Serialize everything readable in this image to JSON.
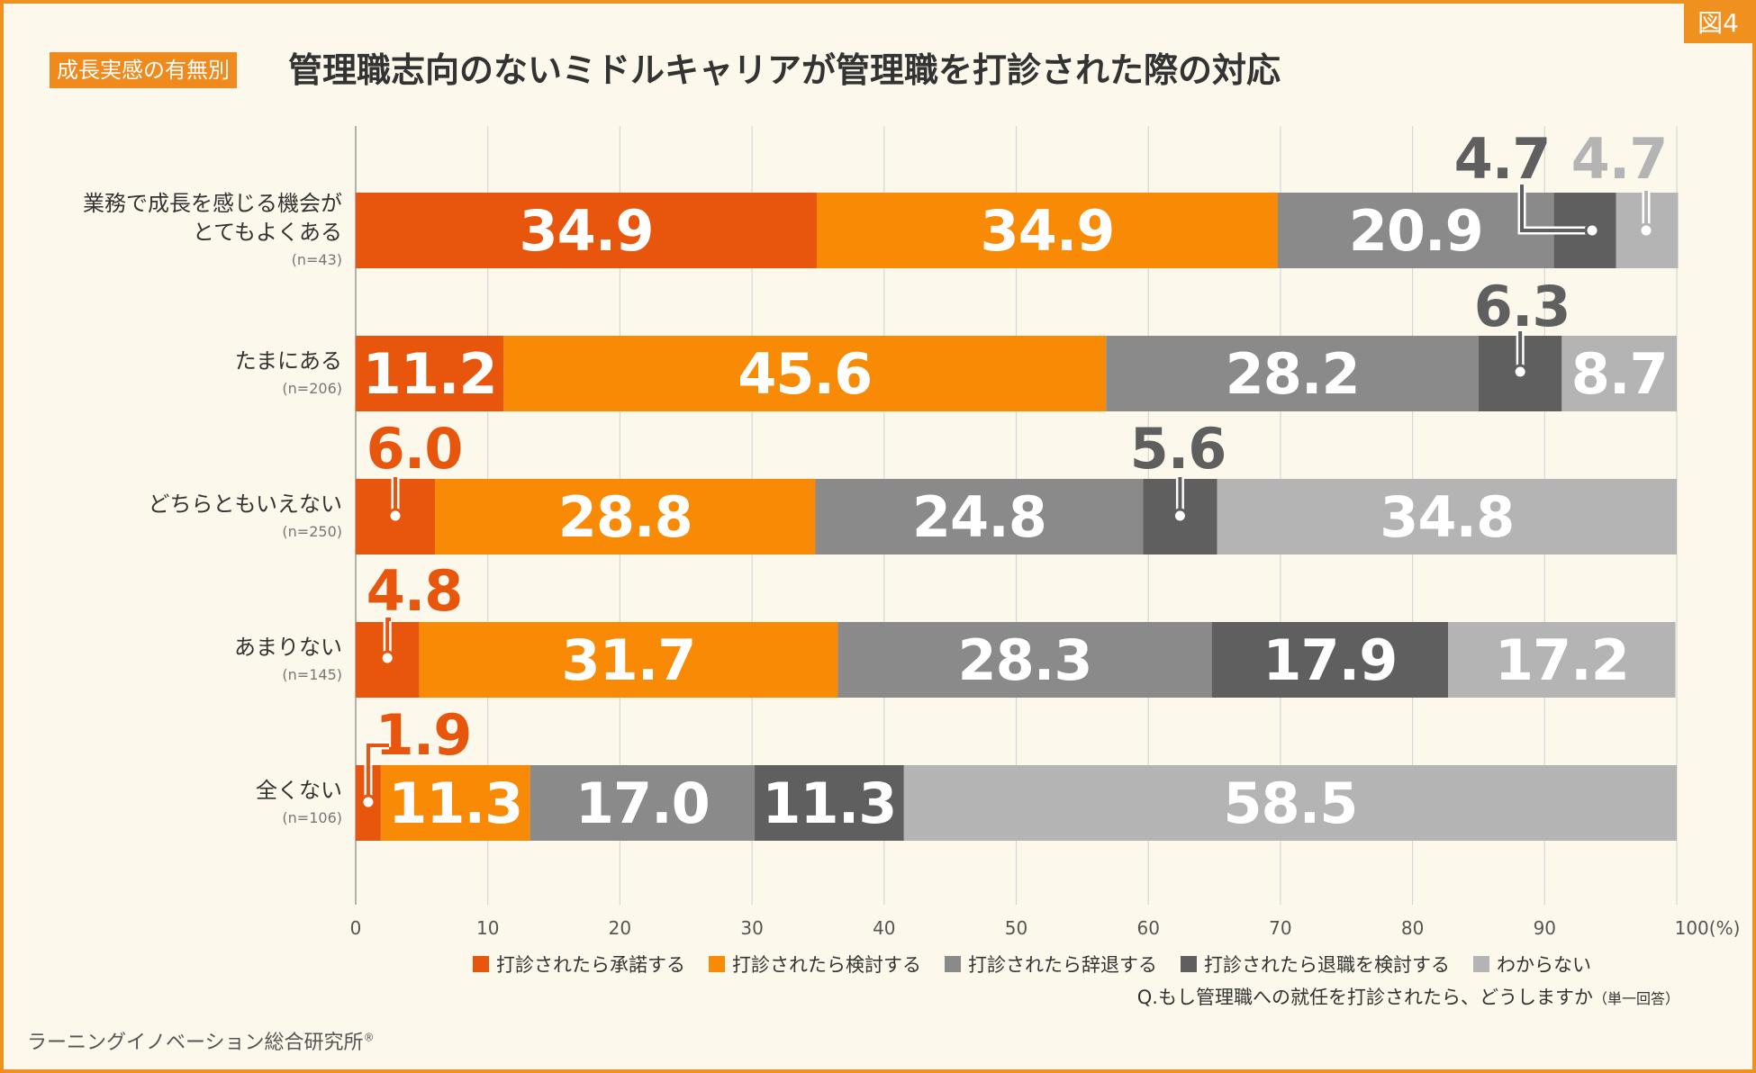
{
  "figure_label": "図4",
  "tag": "成長実感の有無別",
  "title": "管理職志向のないミドルキャリアが管理職を打診された際の対応",
  "question": "Q.もし管理職への就任を打診されたら、どうしますか",
  "question_note": "（単一回答）",
  "source": "ラーニングイノベーション総合研究所",
  "source_mark": "®",
  "colors": {
    "accept": "#e8560e",
    "consider": "#f98a05",
    "decline": "#8a8a8a",
    "quit": "#5f5f5f",
    "unknown": "#b4b4b4",
    "grid": "#d7d7d7"
  },
  "legend": [
    {
      "label": "打診されたら承諾する",
      "color": "#e8560e"
    },
    {
      "label": "打診されたら検討する",
      "color": "#f98a05"
    },
    {
      "label": "打診されたら辞退する",
      "color": "#8a8a8a"
    },
    {
      "label": "打診されたら退職を検討する",
      "color": "#5f5f5f"
    },
    {
      "label": "わからない",
      "color": "#b4b4b4"
    }
  ],
  "chart_data": {
    "type": "bar",
    "orientation": "horizontal",
    "stacked": true,
    "xlim": [
      0,
      100
    ],
    "xticks": [
      "0",
      "10",
      "20",
      "30",
      "40",
      "50",
      "60",
      "70",
      "80",
      "90",
      "100(%)"
    ],
    "categories": [
      {
        "label": [
          "業務で成長を感じる機会が",
          "とてもよくある"
        ],
        "n": "(n=43)"
      },
      {
        "label": [
          "たまにある"
        ],
        "n": "(n=206)"
      },
      {
        "label": [
          "どちらともいえない"
        ],
        "n": "(n=250)"
      },
      {
        "label": [
          "あまりない"
        ],
        "n": "(n=145)"
      },
      {
        "label": [
          "全くない"
        ],
        "n": "(n=106)"
      }
    ],
    "series": [
      {
        "name": "打診されたら承諾する",
        "values": [
          34.9,
          11.2,
          6.0,
          4.8,
          1.9
        ]
      },
      {
        "name": "打診されたら検討する",
        "values": [
          34.9,
          45.6,
          28.8,
          31.7,
          11.3
        ]
      },
      {
        "name": "打診されたら辞退する",
        "values": [
          20.9,
          28.2,
          24.8,
          28.3,
          17.0
        ]
      },
      {
        "name": "打診されたら退職を検討する",
        "values": [
          4.7,
          6.3,
          5.6,
          17.9,
          11.3
        ]
      },
      {
        "name": "わからない",
        "values": [
          4.7,
          8.7,
          34.8,
          17.2,
          58.5
        ]
      }
    ],
    "value_labels": [
      [
        "34.9",
        "34.9",
        "20.9",
        "4.7",
        "4.7"
      ],
      [
        "11.2",
        "45.6",
        "28.2",
        "6.3",
        "8.7"
      ],
      [
        "6.0",
        "28.8",
        "24.8",
        "5.6",
        "34.8"
      ],
      [
        "4.8",
        "31.7",
        "28.3",
        "17.9",
        "17.2"
      ],
      [
        "1.9",
        "11.3",
        "17.0",
        "11.3",
        "58.5"
      ]
    ]
  }
}
